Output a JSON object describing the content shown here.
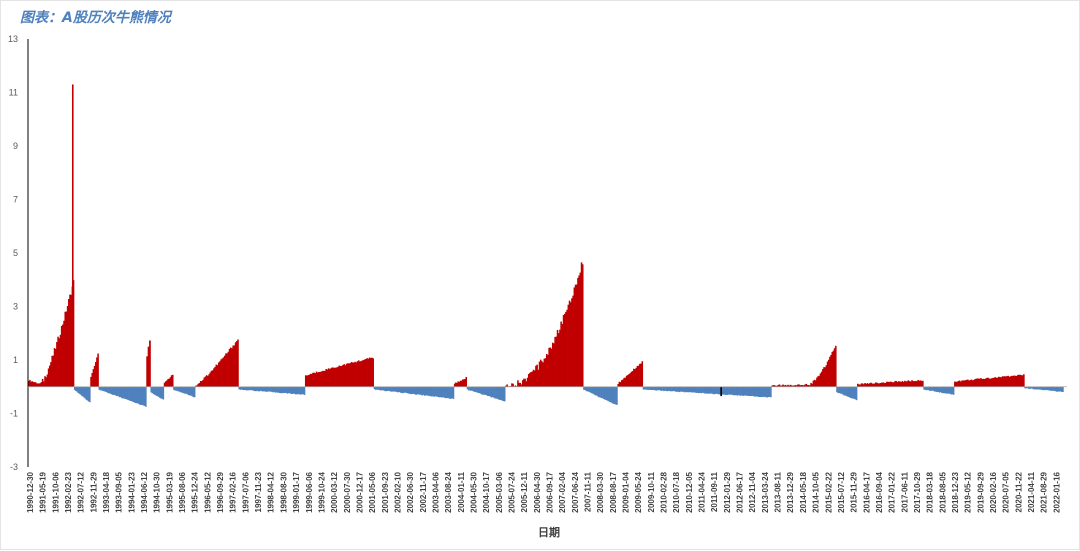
{
  "chart_data": {
    "type": "bar",
    "title": "图表：A股历次牛熊情况",
    "xlabel": "日期",
    "ylabel": "",
    "ylim": [
      -3,
      13
    ],
    "yticks": [
      -3,
      -1,
      1,
      3,
      5,
      7,
      9,
      11,
      13
    ],
    "grid": false,
    "legend": "none",
    "x_tick_labels": [
      "1990-12-30",
      "1991-05-19",
      "1991-10-06",
      "1992-02-23",
      "1992-07-12",
      "1992-11-29",
      "1993-04-18",
      "1993-09-05",
      "1994-01-23",
      "1994-06-12",
      "1994-10-30",
      "1995-03-19",
      "1995-08-06",
      "1995-12-24",
      "1996-05-12",
      "1996-09-29",
      "1997-02-16",
      "1997-07-06",
      "1997-11-23",
      "1998-04-12",
      "1998-08-30",
      "1999-01-17",
      "1999-06-06",
      "1999-10-24",
      "2000-03-12",
      "2000-07-30",
      "2000-12-17",
      "2001-05-06",
      "2001-09-23",
      "2002-02-10",
      "2002-06-30",
      "2002-11-17",
      "2003-04-06",
      "2003-08-24",
      "2004-01-11",
      "2004-05-30",
      "2004-10-17",
      "2005-03-06",
      "2005-07-24",
      "2005-12-11",
      "2006-04-30",
      "2006-09-17",
      "2007-02-04",
      "2007-06-24",
      "2007-11-11",
      "2008-03-30",
      "2008-08-17",
      "2009-01-04",
      "2009-05-24",
      "2009-10-11",
      "2010-02-28",
      "2010-07-18",
      "2010-12-05",
      "2011-04-24",
      "2011-09-11",
      "2012-01-29",
      "2012-06-17",
      "2012-11-04",
      "2013-03-24",
      "2013-08-11",
      "2013-12-29",
      "2014-05-18",
      "2014-10-05",
      "2015-02-22",
      "2015-07-12",
      "2015-11-29",
      "2016-04-17",
      "2016-09-04",
      "2017-01-22",
      "2017-06-11",
      "2017-10-29",
      "2018-03-18",
      "2018-08-05",
      "2018-12-23",
      "2019-05-12",
      "2019-09-29",
      "2020-02-16",
      "2020-07-05",
      "2020-11-22",
      "2021-04-11",
      "2021-08-29",
      "2022-01-16"
    ],
    "colors": {
      "positive": "#c00000",
      "negative": "#4f81bd",
      "axis": "#000000"
    },
    "series": [
      {
        "segments": [
          {
            "from": "1990-12-30",
            "to": "1991-05-19",
            "start": 0.25,
            "end": 0.1
          },
          {
            "from": "1991-05-19",
            "to": "1992-05-21",
            "start": 0.1,
            "end": 4.0,
            "shape": 1.3,
            "spike": 11.3
          },
          {
            "from": "1992-05-21",
            "to": "1992-11-17",
            "start": -0.1,
            "end": -0.6
          },
          {
            "from": "1992-11-17",
            "to": "1993-02-16",
            "start": 0.3,
            "end": 1.3
          },
          {
            "from": "1993-02-16",
            "to": "1994-07-29",
            "start": -0.1,
            "end": -0.75
          },
          {
            "from": "1994-07-29",
            "to": "1994-09-13",
            "start": 1.0,
            "end": 1.9
          },
          {
            "from": "1994-09-13",
            "to": "1995-02-07",
            "start": -0.2,
            "end": -0.5
          },
          {
            "from": "1995-02-07",
            "to": "1995-05-22",
            "start": 0.1,
            "end": 0.5
          },
          {
            "from": "1995-05-22",
            "to": "1996-01-19",
            "start": -0.1,
            "end": -0.4
          },
          {
            "from": "1996-01-19",
            "to": "1997-05-12",
            "start": 0.05,
            "end": 1.8,
            "shape": 1.2
          },
          {
            "from": "1997-05-12",
            "to": "1999-05-17",
            "start": -0.1,
            "end": -0.3
          },
          {
            "from": "1999-05-17",
            "to": "2001-06-14",
            "start": 0.4,
            "end": 1.1,
            "shape": 0.9
          },
          {
            "from": "2001-06-14",
            "to": "2003-11-18",
            "start": -0.1,
            "end": -0.45
          },
          {
            "from": "2003-11-18",
            "to": "2004-04-07",
            "start": 0.1,
            "end": 0.35
          },
          {
            "from": "2004-04-07",
            "to": "2005-06-06",
            "start": -0.1,
            "end": -0.55
          },
          {
            "from": "2005-06-06",
            "to": "2007-10-16",
            "start": 0.05,
            "end": 4.8,
            "shape": 2.2
          },
          {
            "from": "2007-10-16",
            "to": "2008-10-28",
            "start": -0.1,
            "end": -0.7
          },
          {
            "from": "2008-10-28",
            "to": "2009-08-04",
            "start": 0.1,
            "end": 0.95
          },
          {
            "from": "2009-08-04",
            "to": "2013-06-25",
            "start": -0.1,
            "end": -0.4
          },
          {
            "from": "2013-06-25",
            "to": "2014-07-21",
            "start": 0.05,
            "end": 0.08
          },
          {
            "from": "2014-07-21",
            "to": "2015-06-12",
            "start": 0.05,
            "end": 1.6,
            "shape": 1.6
          },
          {
            "from": "2015-06-12",
            "to": "2016-01-28",
            "start": -0.2,
            "end": -0.5
          },
          {
            "from": "2016-01-28",
            "to": "2018-01-29",
            "start": 0.1,
            "end": 0.25
          },
          {
            "from": "2018-01-29",
            "to": "2019-01-04",
            "start": -0.1,
            "end": -0.3
          },
          {
            "from": "2019-01-04",
            "to": "2021-02-18",
            "start": 0.2,
            "end": 0.45
          },
          {
            "from": "2021-02-18",
            "to": "2022-04-26",
            "start": -0.05,
            "end": -0.2
          }
        ]
      }
    ]
  }
}
